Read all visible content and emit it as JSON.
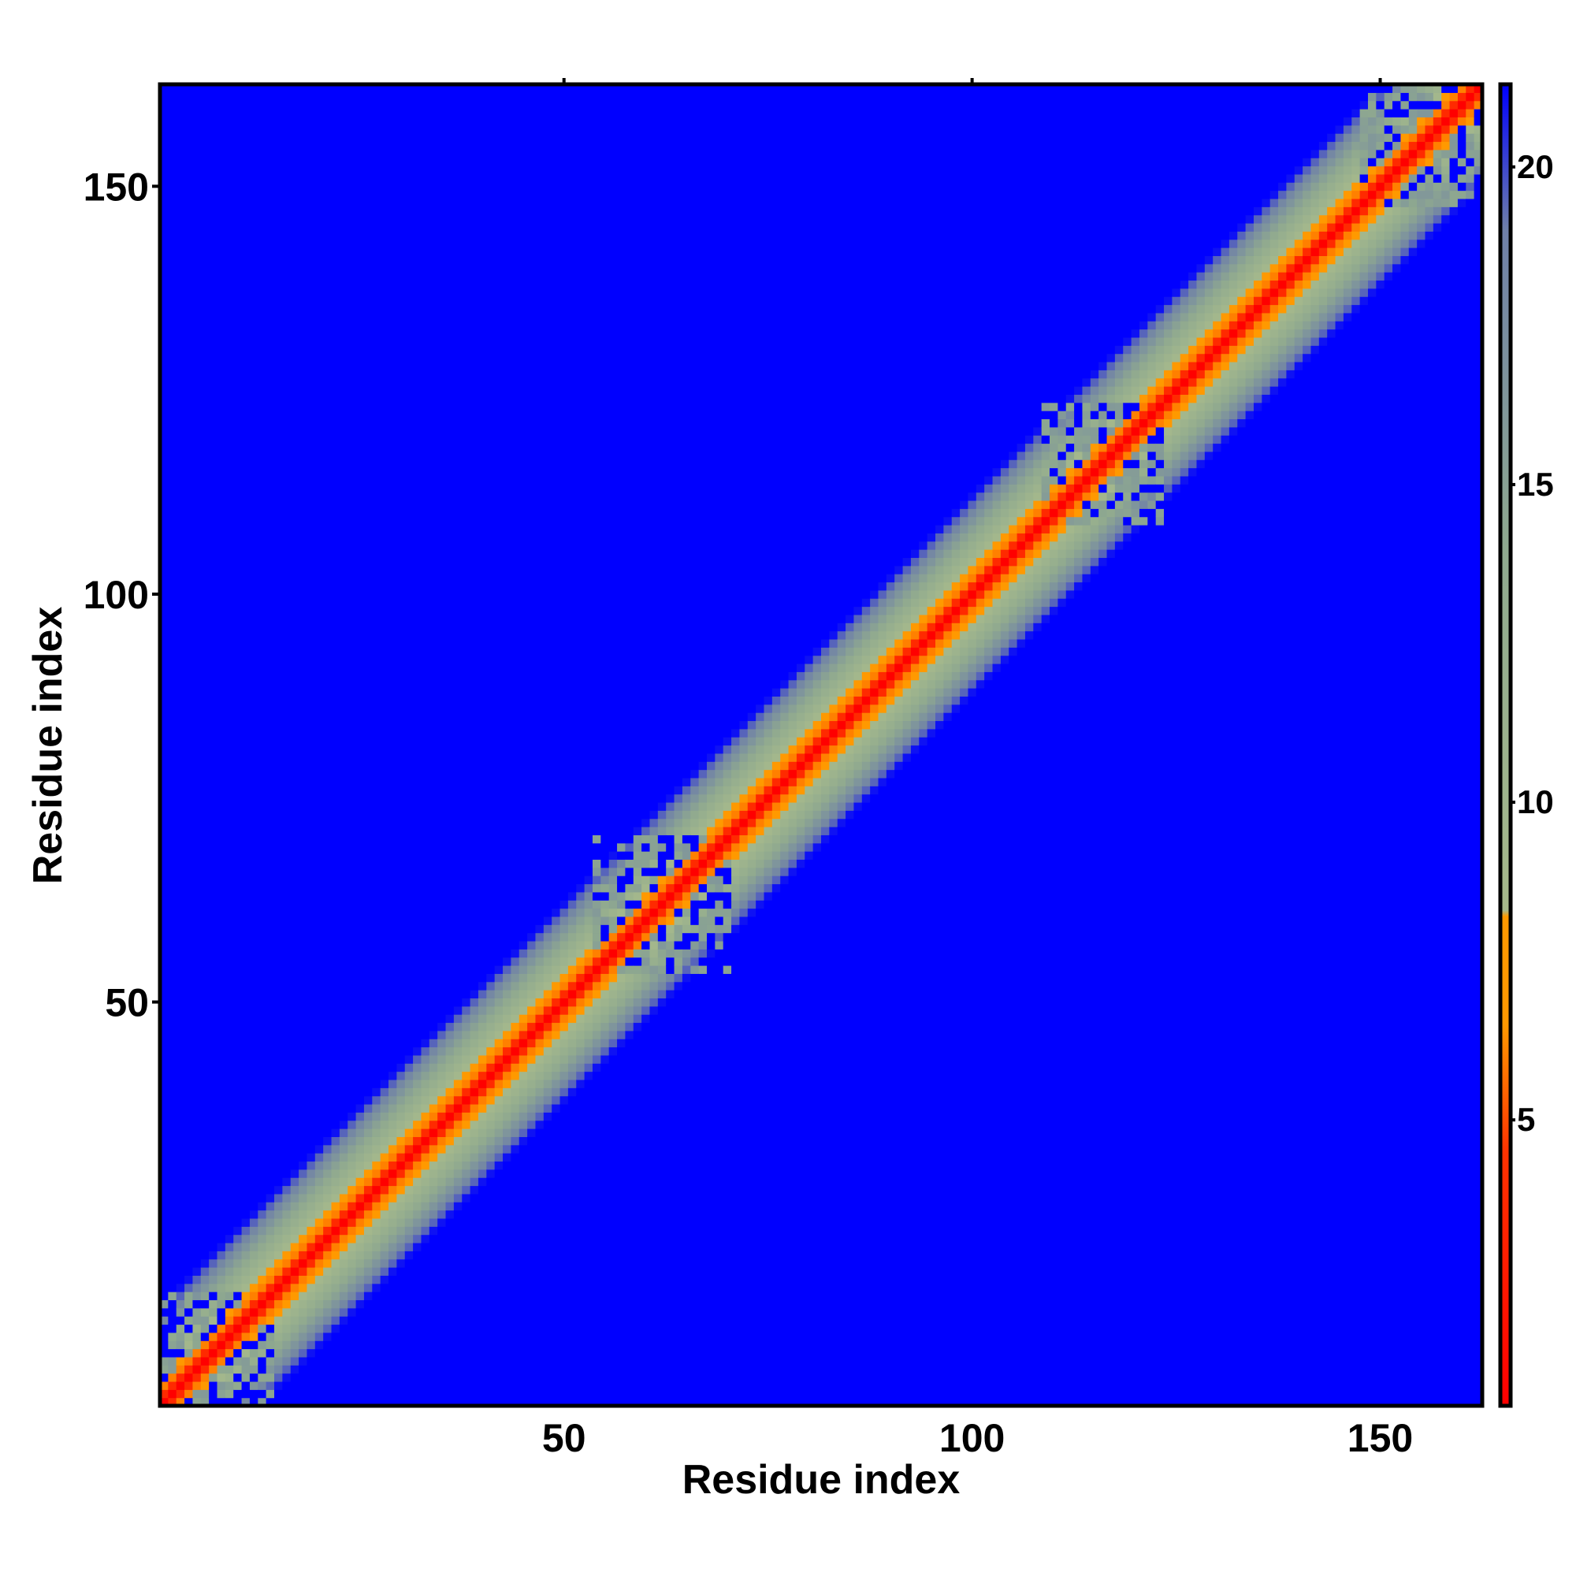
{
  "chart_data": {
    "type": "heatmap",
    "title": "",
    "xlabel": "Residue index",
    "ylabel": "Residue index",
    "xlim": [
      1,
      162
    ],
    "ylim": [
      1,
      162
    ],
    "x_ticks": [
      50,
      100,
      150
    ],
    "y_ticks": [
      50,
      100,
      150
    ],
    "x_tick_labels": [
      "50",
      "100",
      "150"
    ],
    "y_tick_labels": [
      "50",
      "100",
      "150"
    ],
    "n_residues": 162,
    "description_of_values": "pairwise distance matrix, symmetric about the diagonal; values near 0 on the diagonal, increasing with |i-j|, saturating at the colorbar maximum",
    "colorbar": {
      "range": [
        0.5,
        21.3
      ],
      "ticks": [
        5,
        10,
        15,
        20
      ],
      "tick_labels": [
        "5",
        "10",
        "15",
        "20"
      ],
      "placement": "right",
      "color_stops": [
        {
          "value": 0.5,
          "color": "#ff0000"
        },
        {
          "value": 4.5,
          "color": "#ff3300"
        },
        {
          "value": 6.5,
          "color": "#ff9900"
        },
        {
          "value": 8.2,
          "color": "#ff9900"
        },
        {
          "value": 8.3,
          "color": "#a6b98c"
        },
        {
          "value": 14.0,
          "color": "#8fa98f"
        },
        {
          "value": 19.0,
          "color": "#6f80a8"
        },
        {
          "value": 21.3,
          "color": "#0000ff"
        }
      ]
    },
    "band_profile": {
      "offset_1_value": 3.8,
      "offset_2_value": 6.0,
      "offset_3_value": 7.5,
      "slope_beyond_3": 1.5,
      "saturation_value": 21.3
    },
    "irregular_regions": [
      {
        "center": [
          7,
          7
        ],
        "extent": 8
      },
      {
        "center": [
          62,
          62
        ],
        "extent": 9
      },
      {
        "center": [
          116,
          116
        ],
        "extent": 8
      },
      {
        "center": [
          155,
          155
        ],
        "extent": 8
      }
    ]
  }
}
